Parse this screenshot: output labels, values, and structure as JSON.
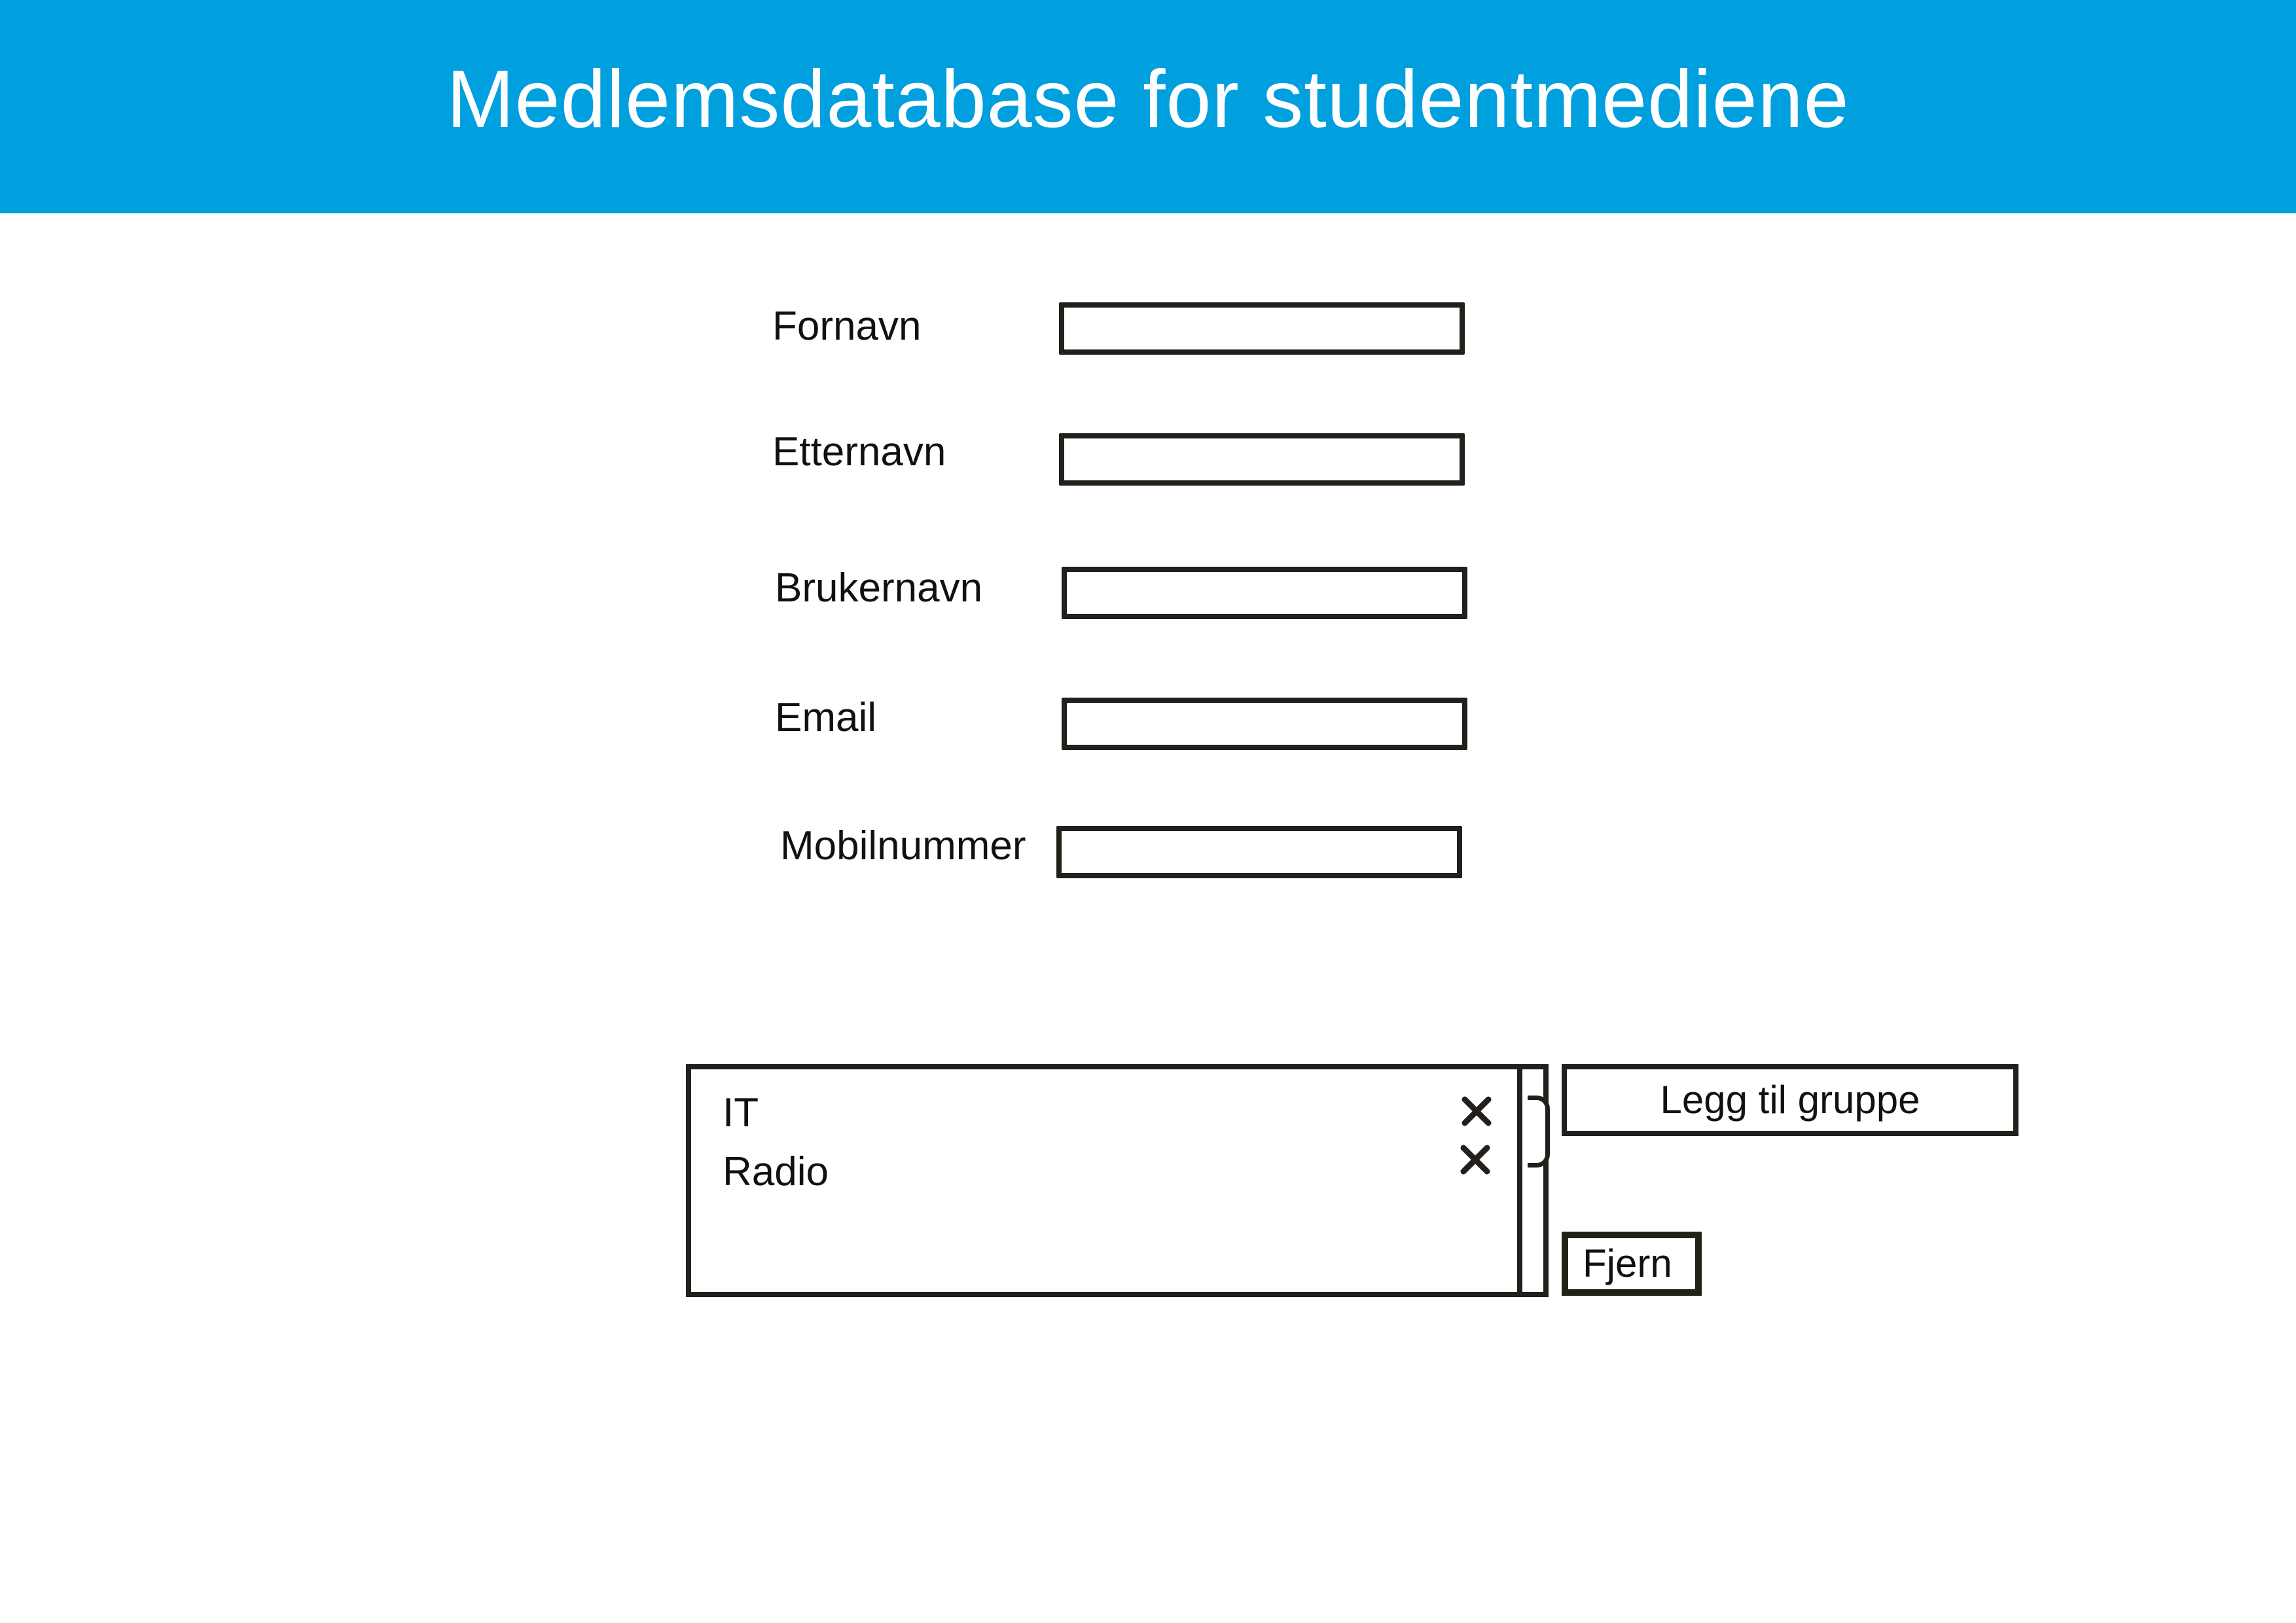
{
  "header": {
    "title": "Medlemsdatabase for studentmediene",
    "background_color": "#009fde",
    "text_color": "#ffffff"
  },
  "form": {
    "fields": [
      {
        "label": "Fornavn",
        "value": ""
      },
      {
        "label": "Etternavn",
        "value": ""
      },
      {
        "label": "Brukernavn",
        "value": ""
      },
      {
        "label": "Email",
        "value": ""
      },
      {
        "label": "Mobilnummer",
        "value": ""
      }
    ]
  },
  "groups": {
    "items": [
      {
        "label": "IT",
        "remove_icon": "close-icon"
      },
      {
        "label": "Radio",
        "remove_icon": "close-icon"
      }
    ],
    "add_button_label": "Legg til gruppe",
    "remove_button_label": "Fjern"
  }
}
